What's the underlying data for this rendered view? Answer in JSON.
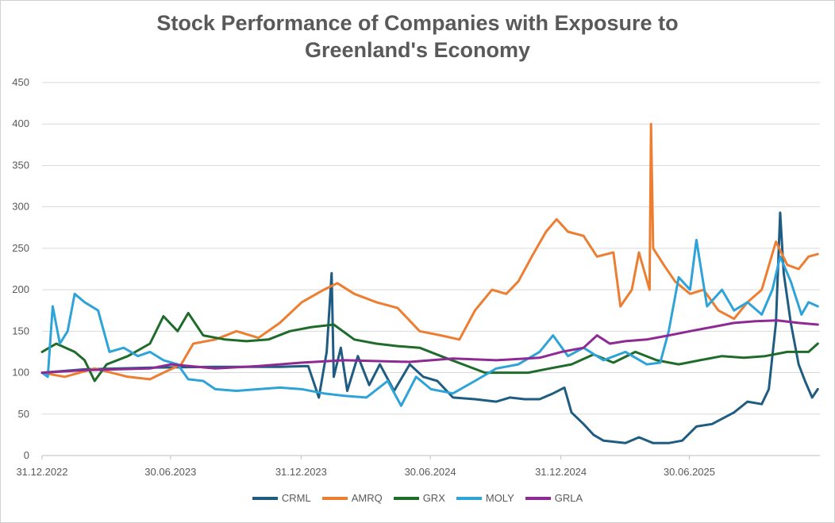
{
  "chart_data": {
    "type": "line",
    "title": "Stock Performance of Companies with Exposure to Greenland's Economy",
    "title_lines": [
      "Stock Performance of Companies with Exposure to",
      "Greenland's Economy"
    ],
    "xlabel": "",
    "ylabel": "",
    "ylim": [
      0,
      450
    ],
    "yticks": [
      0,
      50,
      100,
      150,
      200,
      250,
      300,
      350,
      400,
      450
    ],
    "xlim": [
      "2022-12-31",
      "2025-12-31"
    ],
    "xtick_labels": [
      "31.12.2022",
      "30.06.2023",
      "31.12.2023",
      "30.06.2024",
      "31.12.2024",
      "30.06.2025"
    ],
    "xtick_dates": [
      "2022-12-31",
      "2023-06-30",
      "2023-12-31",
      "2024-06-30",
      "2024-12-31",
      "2025-06-30"
    ],
    "grid": "horizontal",
    "legend_position": "bottom",
    "series": [
      {
        "name": "CRML",
        "color": "#1f5c82",
        "points": [
          [
            "2022-12-31",
            100
          ],
          [
            "2023-03-01",
            104
          ],
          [
            "2023-06-01",
            106
          ],
          [
            "2023-09-01",
            107
          ],
          [
            "2023-12-01",
            107
          ],
          [
            "2024-01-10",
            108
          ],
          [
            "2024-01-25",
            70
          ],
          [
            "2024-02-05",
            125
          ],
          [
            "2024-02-12",
            220
          ],
          [
            "2024-02-15",
            95
          ],
          [
            "2024-02-25",
            130
          ],
          [
            "2024-03-05",
            78
          ],
          [
            "2024-03-20",
            120
          ],
          [
            "2024-04-05",
            85
          ],
          [
            "2024-04-20",
            110
          ],
          [
            "2024-05-10",
            78
          ],
          [
            "2024-06-01",
            110
          ],
          [
            "2024-06-20",
            95
          ],
          [
            "2024-07-10",
            90
          ],
          [
            "2024-08-01",
            70
          ],
          [
            "2024-09-01",
            68
          ],
          [
            "2024-10-01",
            65
          ],
          [
            "2024-10-20",
            70
          ],
          [
            "2024-11-10",
            68
          ],
          [
            "2024-12-01",
            68
          ],
          [
            "2024-12-20",
            75
          ],
          [
            "2025-01-05",
            82
          ],
          [
            "2025-01-15",
            52
          ],
          [
            "2025-02-01",
            38
          ],
          [
            "2025-02-15",
            25
          ],
          [
            "2025-03-01",
            18
          ],
          [
            "2025-04-01",
            15
          ],
          [
            "2025-04-20",
            22
          ],
          [
            "2025-05-10",
            15
          ],
          [
            "2025-06-01",
            15
          ],
          [
            "2025-06-20",
            18
          ],
          [
            "2025-07-10",
            35
          ],
          [
            "2025-08-01",
            38
          ],
          [
            "2025-09-01",
            52
          ],
          [
            "2025-09-20",
            65
          ],
          [
            "2025-10-10",
            62
          ],
          [
            "2025-10-20",
            80
          ],
          [
            "2025-10-30",
            160
          ],
          [
            "2025-11-05",
            293
          ],
          [
            "2025-11-10",
            220
          ],
          [
            "2025-11-20",
            160
          ],
          [
            "2025-12-01",
            110
          ],
          [
            "2025-12-10",
            90
          ],
          [
            "2025-12-20",
            70
          ],
          [
            "2025-12-28",
            80
          ]
        ]
      },
      {
        "name": "AMRQ",
        "color": "#ed7d31",
        "points": [
          [
            "2022-12-31",
            100
          ],
          [
            "2023-02-01",
            95
          ],
          [
            "2023-03-15",
            105
          ],
          [
            "2023-05-01",
            95
          ],
          [
            "2023-06-01",
            92
          ],
          [
            "2023-06-20",
            100
          ],
          [
            "2023-07-15",
            110
          ],
          [
            "2023-08-01",
            135
          ],
          [
            "2023-09-01",
            140
          ],
          [
            "2023-10-01",
            150
          ],
          [
            "2023-11-01",
            142
          ],
          [
            "2023-12-01",
            160
          ],
          [
            "2024-01-01",
            185
          ],
          [
            "2024-02-01",
            200
          ],
          [
            "2024-02-20",
            208
          ],
          [
            "2024-03-15",
            195
          ],
          [
            "2024-04-15",
            185
          ],
          [
            "2024-05-15",
            178
          ],
          [
            "2024-06-15",
            150
          ],
          [
            "2024-07-15",
            145
          ],
          [
            "2024-08-10",
            140
          ],
          [
            "2024-09-01",
            175
          ],
          [
            "2024-09-25",
            200
          ],
          [
            "2024-10-15",
            195
          ],
          [
            "2024-11-01",
            210
          ],
          [
            "2024-11-20",
            240
          ],
          [
            "2024-12-10",
            270
          ],
          [
            "2024-12-25",
            285
          ],
          [
            "2025-01-10",
            270
          ],
          [
            "2025-02-01",
            265
          ],
          [
            "2025-02-20",
            240
          ],
          [
            "2025-03-15",
            245
          ],
          [
            "2025-03-25",
            180
          ],
          [
            "2025-04-10",
            200
          ],
          [
            "2025-04-20",
            245
          ],
          [
            "2025-05-05",
            200
          ],
          [
            "2025-05-07",
            400
          ],
          [
            "2025-05-10",
            250
          ],
          [
            "2025-05-25",
            230
          ],
          [
            "2025-06-10",
            210
          ],
          [
            "2025-07-01",
            195
          ],
          [
            "2025-07-20",
            200
          ],
          [
            "2025-08-10",
            175
          ],
          [
            "2025-09-01",
            165
          ],
          [
            "2025-09-20",
            185
          ],
          [
            "2025-10-10",
            200
          ],
          [
            "2025-10-30",
            258
          ],
          [
            "2025-11-15",
            230
          ],
          [
            "2025-12-01",
            225
          ],
          [
            "2025-12-15",
            240
          ],
          [
            "2025-12-28",
            243
          ]
        ]
      },
      {
        "name": "GRX",
        "color": "#1e6b2a",
        "points": [
          [
            "2022-12-31",
            125
          ],
          [
            "2023-01-20",
            135
          ],
          [
            "2023-02-15",
            125
          ],
          [
            "2023-03-01",
            115
          ],
          [
            "2023-03-15",
            90
          ],
          [
            "2023-04-01",
            110
          ],
          [
            "2023-05-01",
            120
          ],
          [
            "2023-06-01",
            135
          ],
          [
            "2023-06-20",
            168
          ],
          [
            "2023-07-10",
            150
          ],
          [
            "2023-07-25",
            172
          ],
          [
            "2023-08-15",
            145
          ],
          [
            "2023-09-15",
            140
          ],
          [
            "2023-10-15",
            138
          ],
          [
            "2023-11-15",
            140
          ],
          [
            "2023-12-15",
            150
          ],
          [
            "2024-01-15",
            155
          ],
          [
            "2024-02-15",
            158
          ],
          [
            "2024-03-15",
            140
          ],
          [
            "2024-04-15",
            135
          ],
          [
            "2024-05-15",
            132
          ],
          [
            "2024-06-15",
            130
          ],
          [
            "2024-07-15",
            120
          ],
          [
            "2024-08-15",
            110
          ],
          [
            "2024-09-15",
            100
          ],
          [
            "2024-10-15",
            100
          ],
          [
            "2024-11-15",
            100
          ],
          [
            "2024-12-15",
            105
          ],
          [
            "2025-01-15",
            110
          ],
          [
            "2025-02-15",
            122
          ],
          [
            "2025-03-15",
            112
          ],
          [
            "2025-04-15",
            125
          ],
          [
            "2025-05-15",
            115
          ],
          [
            "2025-06-15",
            110
          ],
          [
            "2025-07-15",
            115
          ],
          [
            "2025-08-15",
            120
          ],
          [
            "2025-09-15",
            118
          ],
          [
            "2025-10-15",
            120
          ],
          [
            "2025-11-15",
            125
          ],
          [
            "2025-12-15",
            125
          ],
          [
            "2025-12-28",
            135
          ]
        ]
      },
      {
        "name": "MOLY",
        "color": "#2ea3d8",
        "points": [
          [
            "2022-12-31",
            100
          ],
          [
            "2023-01-08",
            95
          ],
          [
            "2023-01-15",
            180
          ],
          [
            "2023-01-25",
            135
          ],
          [
            "2023-02-05",
            150
          ],
          [
            "2023-02-15",
            195
          ],
          [
            "2023-03-01",
            185
          ],
          [
            "2023-03-20",
            175
          ],
          [
            "2023-04-05",
            125
          ],
          [
            "2023-04-25",
            130
          ],
          [
            "2023-05-15",
            120
          ],
          [
            "2023-06-01",
            125
          ],
          [
            "2023-06-20",
            115
          ],
          [
            "2023-07-10",
            110
          ],
          [
            "2023-07-25",
            92
          ],
          [
            "2023-08-15",
            90
          ],
          [
            "2023-09-01",
            80
          ],
          [
            "2023-10-01",
            78
          ],
          [
            "2023-11-01",
            80
          ],
          [
            "2023-12-01",
            82
          ],
          [
            "2024-01-01",
            80
          ],
          [
            "2024-02-01",
            75
          ],
          [
            "2024-03-01",
            72
          ],
          [
            "2024-04-01",
            70
          ],
          [
            "2024-05-01",
            90
          ],
          [
            "2024-05-20",
            60
          ],
          [
            "2024-06-10",
            95
          ],
          [
            "2024-07-01",
            80
          ],
          [
            "2024-08-01",
            75
          ],
          [
            "2024-09-01",
            90
          ],
          [
            "2024-10-01",
            105
          ],
          [
            "2024-11-01",
            110
          ],
          [
            "2024-12-01",
            125
          ],
          [
            "2024-12-20",
            145
          ],
          [
            "2025-01-10",
            120
          ],
          [
            "2025-02-01",
            130
          ],
          [
            "2025-03-01",
            115
          ],
          [
            "2025-04-01",
            125
          ],
          [
            "2025-05-01",
            110
          ],
          [
            "2025-05-20",
            112
          ],
          [
            "2025-06-01",
            150
          ],
          [
            "2025-06-15",
            215
          ],
          [
            "2025-07-01",
            200
          ],
          [
            "2025-07-10",
            260
          ],
          [
            "2025-07-25",
            180
          ],
          [
            "2025-08-15",
            200
          ],
          [
            "2025-09-01",
            175
          ],
          [
            "2025-09-20",
            185
          ],
          [
            "2025-10-10",
            170
          ],
          [
            "2025-10-25",
            200
          ],
          [
            "2025-11-05",
            240
          ],
          [
            "2025-11-20",
            210
          ],
          [
            "2025-12-05",
            170
          ],
          [
            "2025-12-15",
            185
          ],
          [
            "2025-12-28",
            180
          ]
        ]
      },
      {
        "name": "GRLA",
        "color": "#8e2a94",
        "points": [
          [
            "2022-12-31",
            100
          ],
          [
            "2023-03-01",
            103
          ],
          [
            "2023-06-01",
            105
          ],
          [
            "2023-07-01",
            110
          ],
          [
            "2023-09-01",
            105
          ],
          [
            "2023-11-01",
            108
          ],
          [
            "2023-12-31",
            112
          ],
          [
            "2024-03-01",
            115
          ],
          [
            "2024-06-01",
            113
          ],
          [
            "2024-08-01",
            117
          ],
          [
            "2024-10-01",
            115
          ],
          [
            "2024-12-01",
            118
          ],
          [
            "2025-01-01",
            125
          ],
          [
            "2025-02-01",
            130
          ],
          [
            "2025-02-20",
            145
          ],
          [
            "2025-03-10",
            135
          ],
          [
            "2025-04-01",
            138
          ],
          [
            "2025-05-01",
            140
          ],
          [
            "2025-06-01",
            145
          ],
          [
            "2025-07-01",
            150
          ],
          [
            "2025-08-01",
            155
          ],
          [
            "2025-09-01",
            160
          ],
          [
            "2025-10-01",
            162
          ],
          [
            "2025-11-01",
            163
          ],
          [
            "2025-12-01",
            160
          ],
          [
            "2025-12-28",
            158
          ]
        ]
      }
    ]
  }
}
